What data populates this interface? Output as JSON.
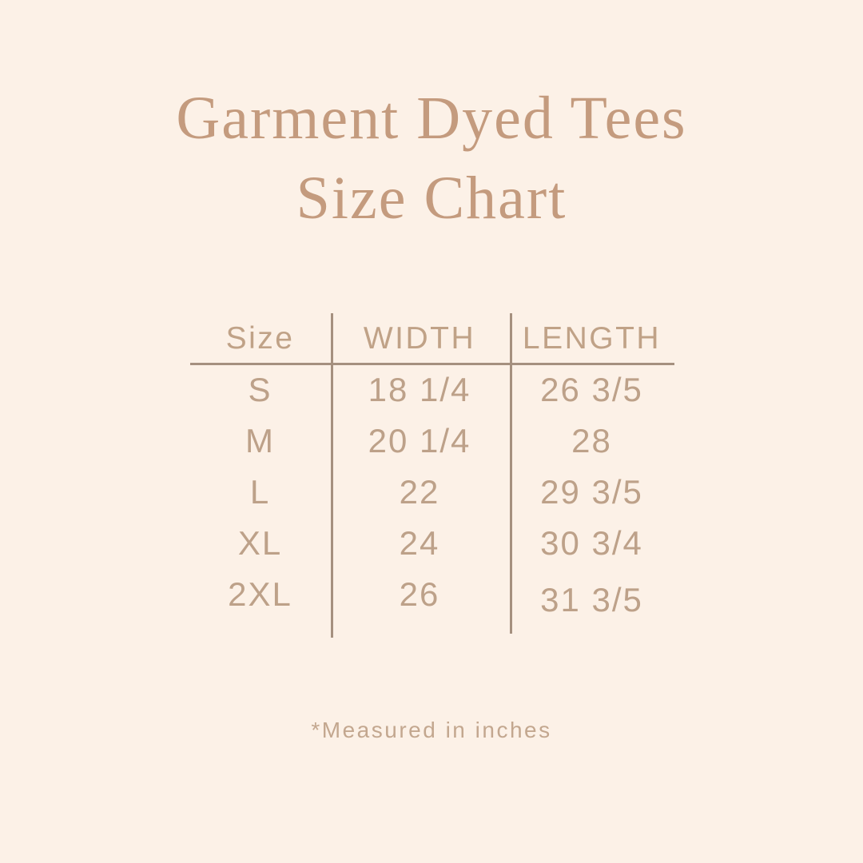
{
  "page": {
    "background_color": "#fcf1e7",
    "title_color": "#c49b7e",
    "table_text_color": "#bda189",
    "table_line_color": "#a5907f"
  },
  "title": {
    "line1": "Garment Dyed Tees",
    "line2": "Size Chart"
  },
  "table": {
    "headers": {
      "size": "Size",
      "width": "WIDTH",
      "length": "LENGTH"
    },
    "rows": [
      {
        "size": "S",
        "width": "18 1/4",
        "length": "26 3/5"
      },
      {
        "size": "M",
        "width": "20 1/4",
        "length": "28"
      },
      {
        "size": "L",
        "width": "22",
        "length": "29 3/5"
      },
      {
        "size": "XL",
        "width": "24",
        "length": "30 3/4"
      },
      {
        "size": "2XL",
        "width": "26",
        "length": "31 3/5"
      }
    ]
  },
  "footnote": {
    "text": "*Measured in inches"
  }
}
